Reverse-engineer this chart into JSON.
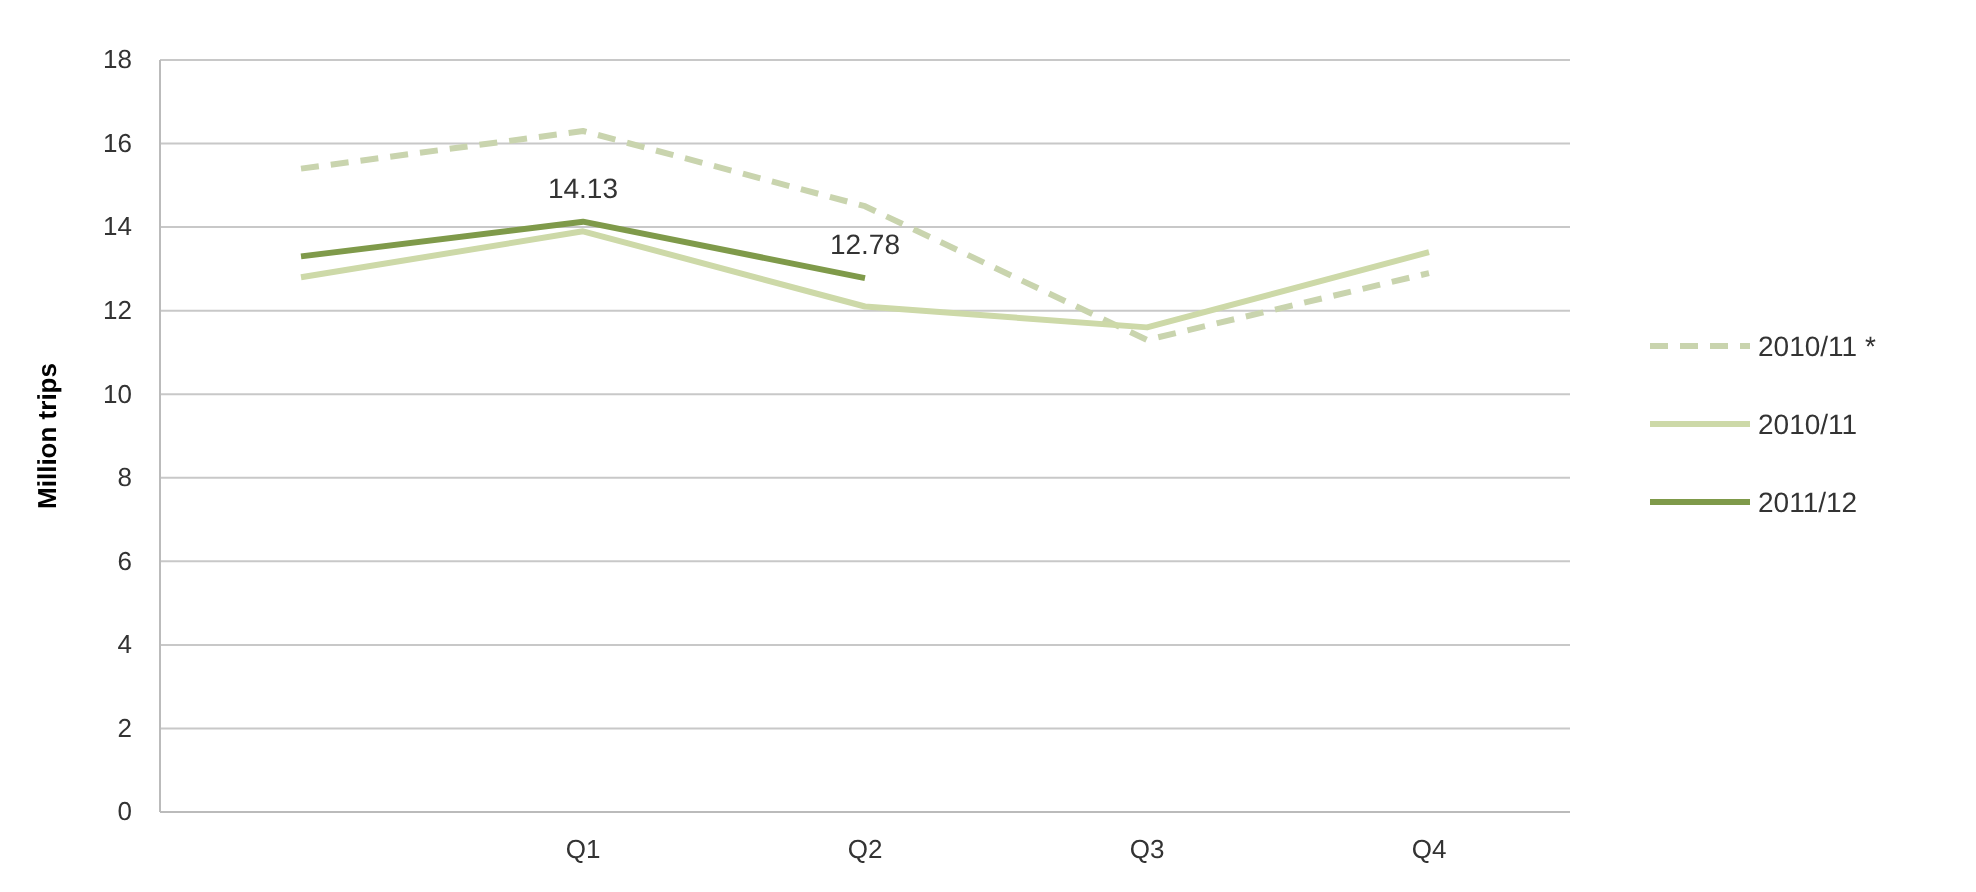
{
  "chart_data": {
    "type": "line",
    "ylabel": "Million trips",
    "categories": [
      null,
      "Q1",
      "Q2",
      "Q3",
      "Q4"
    ],
    "series": [
      {
        "name": "2010/11 *",
        "color": "#c9d4ae",
        "line_style": "dashed",
        "values": [
          15.4,
          16.3,
          14.5,
          11.3,
          12.9
        ]
      },
      {
        "name": "2010/11",
        "color": "#cdd9a8",
        "values": [
          12.8,
          13.9,
          12.1,
          11.6,
          13.4
        ]
      },
      {
        "name": "2011/12",
        "color": "#7f9a4a",
        "values": [
          13.3,
          14.13,
          12.78,
          null,
          null
        ],
        "value_labels": [
          null,
          "14.13",
          "12.78",
          null,
          null
        ]
      }
    ],
    "ylim": [
      0,
      18
    ],
    "yticks": [
      0,
      2,
      4,
      6,
      8,
      10,
      12,
      14,
      16,
      18
    ],
    "grid": "y",
    "legend": "right",
    "marker": "none",
    "line_style": "solid"
  }
}
